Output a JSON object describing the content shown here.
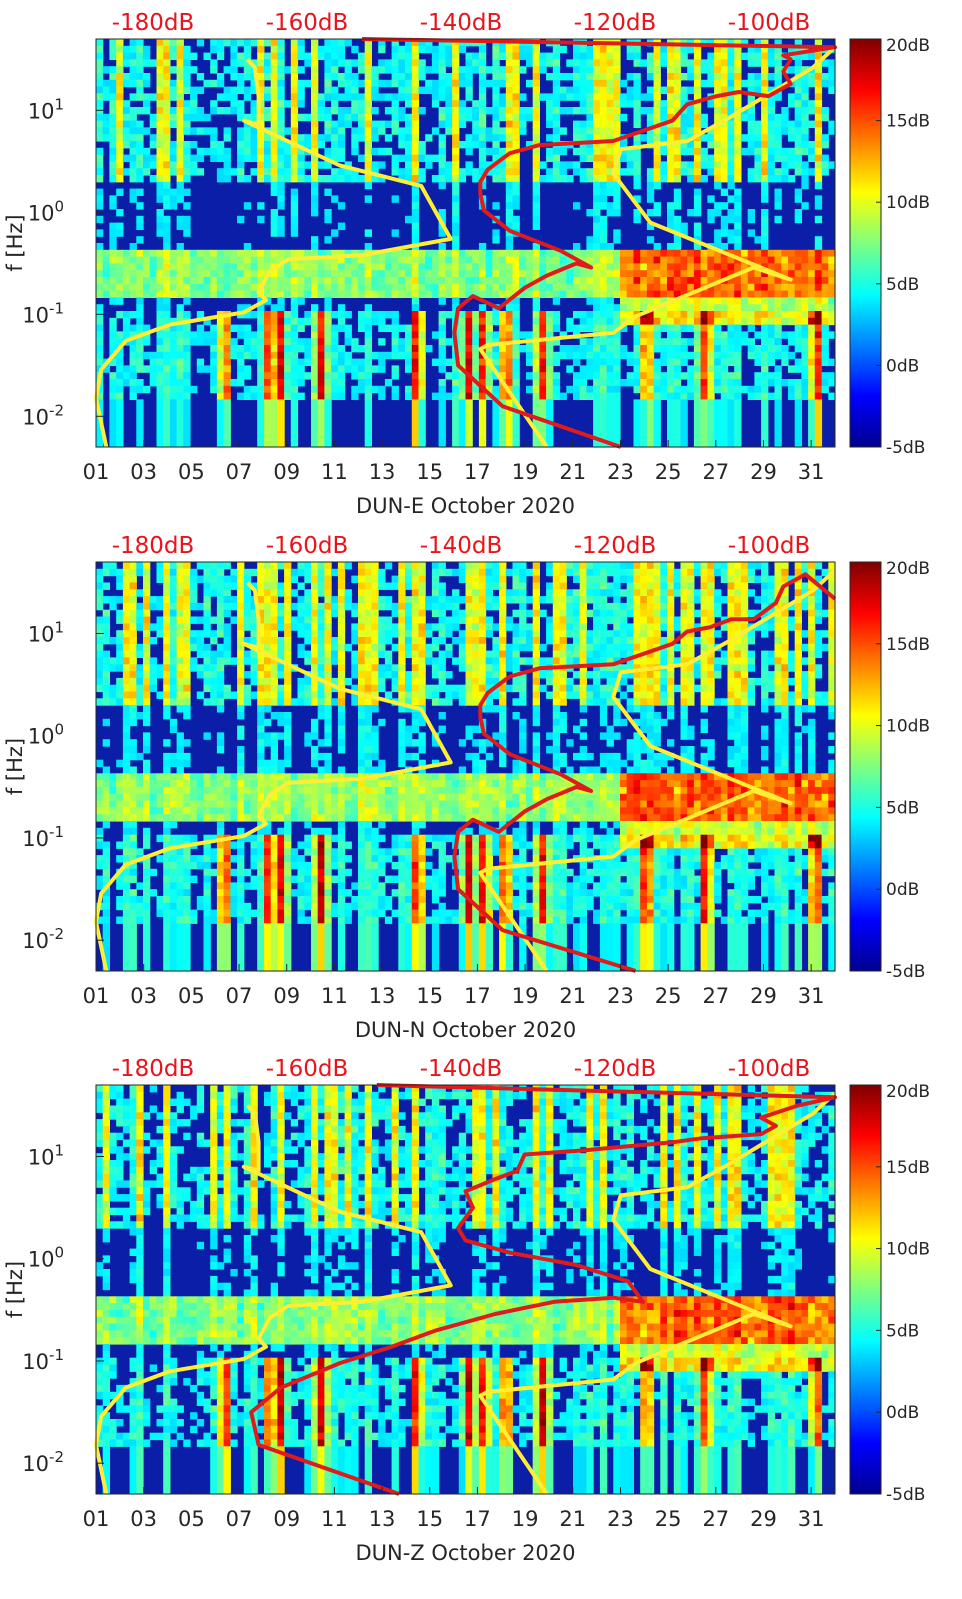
{
  "chart_data": [
    {
      "type": "heatmap",
      "title": "",
      "xlabel": "DUN-E October 2020",
      "ylabel": "f [Hz]",
      "y_scale": "log",
      "ylim": [
        0.005,
        50
      ],
      "xlim": [
        1,
        32
      ],
      "x_ticks": [
        "01",
        "03",
        "05",
        "07",
        "09",
        "11",
        "13",
        "15",
        "17",
        "19",
        "21",
        "23",
        "25",
        "27",
        "29",
        "31"
      ],
      "y_ticks": [
        {
          "value": 0.01,
          "base": "10",
          "exp": "-2"
        },
        {
          "value": 0.1,
          "base": "10",
          "exp": "-1"
        },
        {
          "value": 1,
          "base": "10",
          "exp": "0"
        },
        {
          "value": 10,
          "base": "10",
          "exp": "1"
        }
      ],
      "top_axis_labels": [
        "-180dB",
        "-160dB",
        "-140dB",
        "-120dB",
        "-100dB"
      ],
      "colorbar": {
        "labels": [
          "20dB",
          "15dB",
          "10dB",
          "5dB",
          "0dB",
          "-5dB"
        ],
        "range": [
          -5,
          20
        ],
        "colormap": "jet"
      },
      "series": [
        {
          "color": "#ffee33",
          "role": "noise model low/high (yellow, top dB axis)"
        },
        {
          "color": "#e01b1b",
          "role": "station noise curve (red, top dB axis)"
        }
      ]
    },
    {
      "type": "heatmap",
      "title": "",
      "xlabel": "DUN-N October 2020",
      "ylabel": "f [Hz]",
      "y_scale": "log",
      "ylim": [
        0.005,
        50
      ],
      "xlim": [
        1,
        32
      ],
      "x_ticks": [
        "01",
        "03",
        "05",
        "07",
        "09",
        "11",
        "13",
        "15",
        "17",
        "19",
        "21",
        "23",
        "25",
        "27",
        "29",
        "31"
      ],
      "y_ticks": [
        {
          "value": 0.01,
          "base": "10",
          "exp": "-2"
        },
        {
          "value": 0.1,
          "base": "10",
          "exp": "-1"
        },
        {
          "value": 1,
          "base": "10",
          "exp": "0"
        },
        {
          "value": 10,
          "base": "10",
          "exp": "1"
        }
      ],
      "top_axis_labels": [
        "-180dB",
        "-160dB",
        "-140dB",
        "-120dB",
        "-100dB"
      ],
      "colorbar": {
        "labels": [
          "20dB",
          "15dB",
          "10dB",
          "5dB",
          "0dB",
          "-5dB"
        ],
        "range": [
          -5,
          20
        ],
        "colormap": "jet"
      },
      "series": [
        {
          "color": "#ffee33",
          "role": "noise model low/high (yellow, top dB axis)"
        },
        {
          "color": "#e01b1b",
          "role": "station noise curve (red, top dB axis)"
        }
      ]
    },
    {
      "type": "heatmap",
      "title": "",
      "xlabel": "DUN-Z October 2020",
      "ylabel": "f [Hz]",
      "y_scale": "log",
      "ylim": [
        0.005,
        50
      ],
      "xlim": [
        1,
        32
      ],
      "x_ticks": [
        "01",
        "03",
        "05",
        "07",
        "09",
        "11",
        "13",
        "15",
        "17",
        "19",
        "21",
        "23",
        "25",
        "27",
        "29",
        "31"
      ],
      "y_ticks": [
        {
          "value": 0.01,
          "base": "10",
          "exp": "-2"
        },
        {
          "value": 0.1,
          "base": "10",
          "exp": "-1"
        },
        {
          "value": 1,
          "base": "10",
          "exp": "0"
        },
        {
          "value": 10,
          "base": "10",
          "exp": "1"
        }
      ],
      "top_axis_labels": [
        "-180dB",
        "-160dB",
        "-140dB",
        "-120dB",
        "-100dB"
      ],
      "colorbar": {
        "labels": [
          "20dB",
          "15dB",
          "10dB",
          "5dB",
          "0dB",
          "-5dB"
        ],
        "range": [
          -5,
          20
        ],
        "colormap": "jet"
      },
      "series": [
        {
          "color": "#ffee33",
          "role": "noise model low/high (yellow, top dB axis)"
        },
        {
          "color": "#e01b1b",
          "role": "station noise curve (red, top dB axis)"
        }
      ]
    }
  ]
}
